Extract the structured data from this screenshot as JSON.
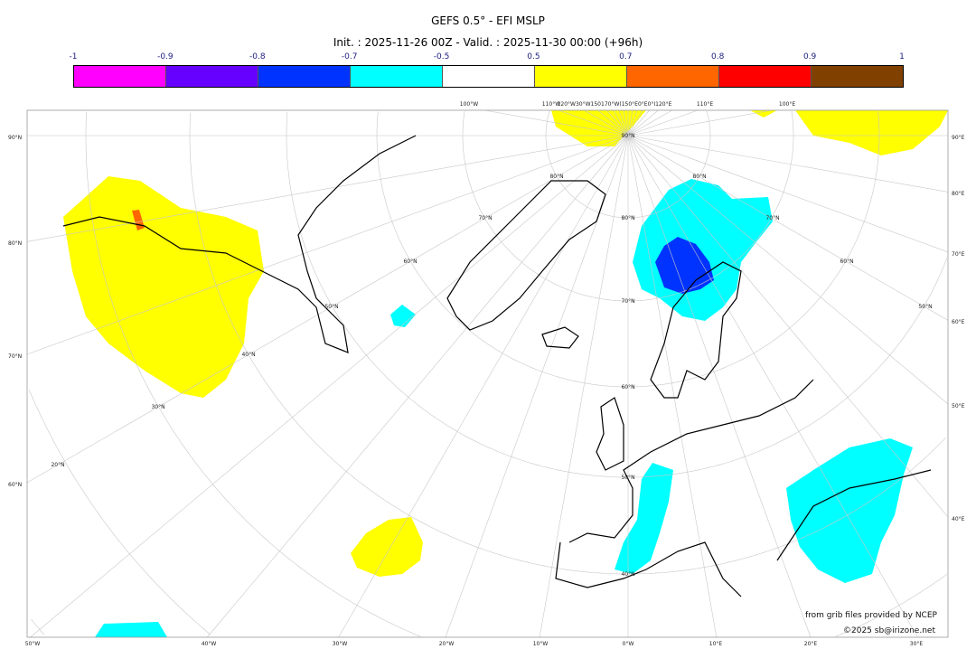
{
  "title": "GEFS 0.5° - EFI MSLP",
  "subtitle": "Init. : 2025-11-26 00Z - Valid. : 2025-11-30 00:00 (+96h)",
  "colorbar": {
    "ticks": [
      "-1",
      "-0.9",
      "-0.8",
      "-0.7",
      "-0.5",
      "0.5",
      "0.7",
      "0.8",
      "0.9",
      "1"
    ],
    "colors": [
      "#ff00ff",
      "#6600ff",
      "#0033ff",
      "#00ffff",
      "#ffffff",
      "#ffff00",
      "#ff6600",
      "#ff0000",
      "#804000"
    ]
  },
  "map": {
    "left_lat_labels": [
      "90°N",
      "80°N",
      "70°N",
      "60°N"
    ],
    "right_lon_labels": [
      "90°E",
      "80°E",
      "70°E",
      "60°E",
      "50°E",
      "40°E"
    ],
    "bottom_lon_labels": [
      "50°W",
      "40°W",
      "30°W",
      "20°W",
      "10°W",
      "0°W",
      "10°E",
      "20°E",
      "30°E"
    ],
    "top_lon_labels": [
      "100°W",
      "110°W",
      "120°W30°W150170°W(150°E0°E0°I120°E",
      "110°E",
      "100°E"
    ],
    "inner_lat_labels": [
      "90°N",
      "80°N",
      "70°N",
      "60°N",
      "50°N",
      "40°N",
      "30°N",
      "20°N"
    ],
    "inner_right_lat_labels": [
      "80°N",
      "70°N",
      "60°N",
      "50°N"
    ],
    "meridian_lat_labels": [
      "80°N",
      "70°N",
      "60°N",
      "50°N",
      "40°N"
    ]
  },
  "credits": {
    "line1": "from grib files provided by NCEP",
    "line2": "©2025 sb@irizone.net"
  }
}
